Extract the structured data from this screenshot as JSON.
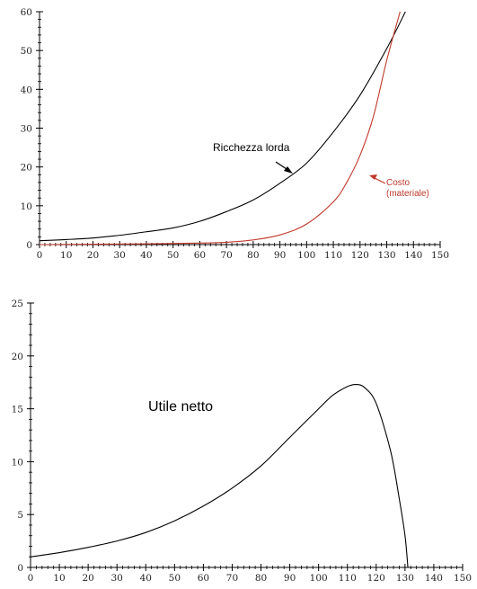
{
  "chart_data": [
    {
      "type": "line",
      "title": "",
      "xlabel": "",
      "ylabel": "",
      "xlim": [
        0,
        150
      ],
      "ylim": [
        0,
        60
      ],
      "x_ticks": [
        0,
        10,
        20,
        30,
        40,
        50,
        60,
        70,
        80,
        90,
        100,
        110,
        120,
        130,
        140,
        150
      ],
      "y_ticks": [
        0,
        10,
        20,
        30,
        40,
        50,
        60
      ],
      "grid": false,
      "series": [
        {
          "color": "#000000",
          "x": [
            0,
            10,
            20,
            30,
            40,
            50,
            60,
            70,
            80,
            90,
            100,
            110,
            120,
            130,
            137
          ],
          "y": [
            1.0,
            1.3,
            1.7,
            2.4,
            3.3,
            4.3,
            6.0,
            8.5,
            11.5,
            15.8,
            21.0,
            29.0,
            38.5,
            50.5,
            60.0
          ]
        },
        {
          "color": "#c0392b",
          "x": [
            0,
            40,
            60,
            70,
            80,
            90,
            100,
            110,
            115,
            120,
            125,
            130,
            135
          ],
          "y": [
            0.0,
            0.2,
            0.4,
            0.6,
            1.2,
            2.5,
            5.3,
            11.0,
            16.0,
            23.0,
            33.0,
            47.5,
            60.0
          ]
        }
      ],
      "annotations": [
        {
          "text": "Ricchezza lorda",
          "color": "#000000"
        },
        {
          "text": "Costo",
          "color": "#c0392b"
        },
        {
          "text": "(materiale)",
          "color": "#c0392b"
        }
      ]
    },
    {
      "type": "line",
      "title": "",
      "xlabel": "",
      "ylabel": "",
      "xlim": [
        0,
        150
      ],
      "ylim": [
        0,
        25
      ],
      "x_ticks": [
        0,
        10,
        20,
        30,
        40,
        50,
        60,
        70,
        80,
        90,
        100,
        110,
        120,
        130,
        140,
        150
      ],
      "y_ticks": [
        0,
        5,
        10,
        15,
        20,
        25
      ],
      "grid": false,
      "series": [
        {
          "color": "#000000",
          "x": [
            0,
            10,
            20,
            30,
            40,
            50,
            60,
            70,
            80,
            90,
            100,
            105,
            110,
            113,
            116,
            120,
            125,
            128,
            130,
            131
          ],
          "y": [
            1.0,
            1.4,
            1.9,
            2.5,
            3.3,
            4.4,
            5.8,
            7.5,
            9.6,
            12.3,
            15.0,
            16.3,
            17.1,
            17.3,
            17.0,
            15.5,
            11.0,
            6.5,
            3.0,
            0.0
          ]
        }
      ],
      "annotations": [
        {
          "text": "Utile netto",
          "color": "#000000"
        }
      ]
    }
  ]
}
